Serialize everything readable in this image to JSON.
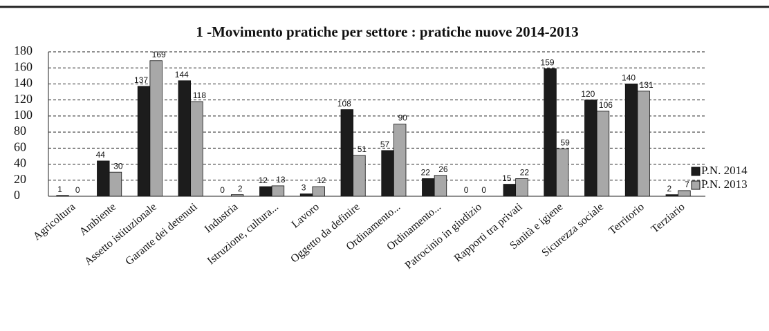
{
  "chart_data": {
    "type": "bar",
    "title": "1 -Movimento pratiche per settore : pratiche nuove 2014-2013",
    "categories": [
      "Agricoltura",
      "Ambiente",
      "Assetto istituzionale",
      "Garante dei detenuti",
      "Industria",
      "Istruzione, cultura...",
      "Lavoro",
      "Oggetto da definire",
      "Ordinamento...",
      "Ordinamento...",
      "Patrocinio in giudizio",
      "Rapporti tra privati",
      "Sanità e igiene",
      "Sicurezza sociale",
      "Territorio",
      "Terziario"
    ],
    "series": [
      {
        "name": "P.N. 2014",
        "color": "#1c1c1c",
        "values": [
          1,
          44,
          137,
          144,
          0,
          12,
          3,
          108,
          57,
          22,
          0,
          15,
          159,
          120,
          140,
          2
        ]
      },
      {
        "name": "P.N. 2013",
        "color": "#a8a8a8",
        "values": [
          0,
          30,
          169,
          118,
          2,
          13,
          12,
          51,
          90,
          26,
          0,
          22,
          59,
          106,
          131,
          7
        ]
      }
    ],
    "ylim": [
      0,
      180
    ],
    "yticks": [
      0,
      20,
      40,
      60,
      80,
      100,
      120,
      140,
      160,
      180
    ],
    "grid": true,
    "legend": "right"
  }
}
